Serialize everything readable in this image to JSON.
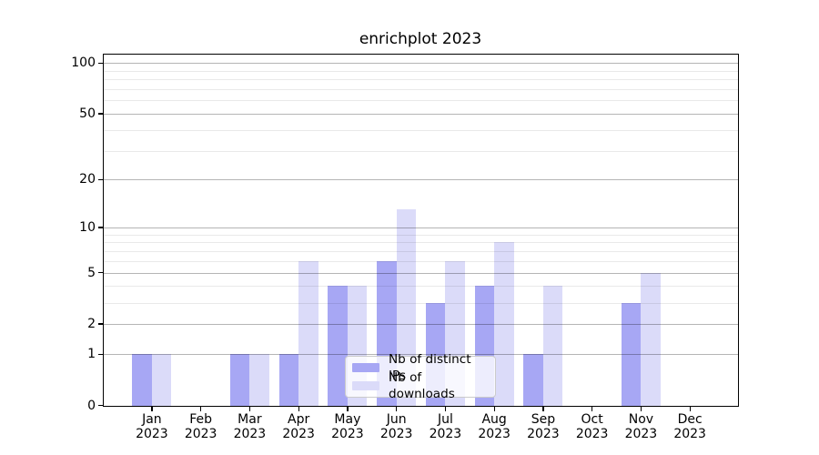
{
  "figure": {
    "background": "#ffffff"
  },
  "chart_data": {
    "type": "bar",
    "title": "enrichplot 2023",
    "x": [
      "Jan 2023",
      "Feb 2023",
      "Mar 2023",
      "Apr 2023",
      "May 2023",
      "Jun 2023",
      "Jul 2023",
      "Aug 2023",
      "Sep 2023",
      "Oct 2023",
      "Nov 2023",
      "Dec 2023"
    ],
    "series": [
      {
        "name": "Nb of distinct IPs",
        "color": "#a7a7f4",
        "values": [
          1,
          0,
          1,
          1,
          4,
          6,
          3,
          4,
          1,
          0,
          3,
          0
        ]
      },
      {
        "name": "Nb of downloads",
        "color": "#dbdbf9",
        "values": [
          1,
          0,
          1,
          6,
          4,
          13,
          6,
          8,
          4,
          0,
          5,
          0
        ]
      }
    ],
    "xlabel": "",
    "ylabel": "",
    "y_scale": "log1p",
    "y_major_ticks": [
      0,
      1,
      2,
      5,
      10,
      20,
      50,
      100
    ],
    "y_minor_gridlines": [
      3,
      4,
      6,
      7,
      8,
      9,
      30,
      40,
      60,
      70,
      80,
      90
    ],
    "ylim": [
      0,
      112
    ],
    "grid": "both",
    "grid_above_bars": true,
    "legend_position": "inside-bottom-center-right"
  }
}
